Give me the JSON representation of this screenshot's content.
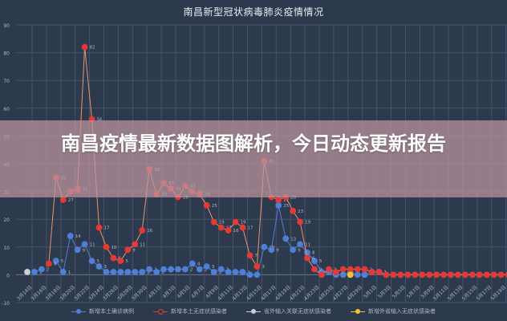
{
  "title": "南昌新型冠状病毒肺炎疫情情况",
  "banner": {
    "text": "南昌疫情最新数据图解析，今日动态更新报告"
  },
  "legend": [
    {
      "label": "新增本土确诊病例",
      "color": "#4f7fd6",
      "icon": "legend-line-dot"
    },
    {
      "label": "新增本土无症状感染者",
      "color": "#e53935",
      "icon": "legend-line-dot"
    },
    {
      "label": "省外输入关联无症状感染者",
      "color": "#c9ced6",
      "icon": "legend-line-dot"
    },
    {
      "label": "新增外省输入无症状感染者",
      "color": "#f4c430",
      "icon": "legend-line-dot"
    }
  ],
  "colors": {
    "background": "#2d3a4d",
    "grid": "#45536a",
    "axis_text": "#aeb6c4",
    "confirmed": "#4f7fd6",
    "asymptomatic": "#e53935",
    "asym_line": "#e8956a"
  },
  "chart_data": {
    "type": "line",
    "title": "南昌新型冠状病毒肺炎疫情情况",
    "xlabel": "",
    "ylabel": "",
    "ylim": [
      -10,
      90
    ],
    "yticks": [
      -10,
      0,
      10,
      20,
      30,
      40,
      50,
      60,
      70,
      80,
      90
    ],
    "grid": true,
    "legend_position": "bottom",
    "xtick_labels": [
      "3月14日",
      "3月16日",
      "3月18日",
      "3月20日",
      "3月22日",
      "3月24日",
      "3月26日",
      "3月28日",
      "3月30日",
      "4月1日",
      "4月3日",
      "4月5日",
      "4月7日",
      "4月9日",
      "4月11日",
      "4月13日",
      "4月15日",
      "4月17日",
      "4月19日",
      "4月21日",
      "4月23日",
      "4月25日",
      "4月27日",
      "4月29日",
      "5月1日",
      "5月3日",
      "5月5日",
      "5月7日",
      "5月9日",
      "5月11日",
      "5月13日",
      "5月15日",
      "5月17日",
      "5月19日"
    ],
    "x_start": "3月14日",
    "x_count": 68,
    "series": [
      {
        "name": "新增本土确诊病例",
        "start_index": 1,
        "values": [
          1,
          2,
          null,
          5,
          1,
          14,
          9,
          11,
          5,
          3,
          1,
          1,
          1,
          1,
          1,
          1,
          2,
          1,
          2,
          2,
          2,
          2,
          4,
          2,
          3,
          1,
          2,
          1,
          1,
          1,
          0,
          0,
          10,
          9,
          25,
          13,
          9,
          11,
          8,
          5,
          1,
          1,
          0,
          0,
          1,
          0,
          0,
          1,
          1,
          0,
          0,
          0,
          0,
          0,
          0,
          0,
          0,
          0,
          0,
          0,
          0,
          0,
          0,
          0,
          0,
          0,
          0
        ]
      },
      {
        "name": "新增本土无症状感染者",
        "start_index": 3,
        "values": [
          4,
          35,
          27,
          30,
          31,
          82,
          56,
          17,
          10,
          6,
          5,
          9,
          11,
          16,
          38,
          29,
          33,
          31,
          28,
          32,
          30,
          29,
          25,
          19,
          17,
          16,
          19,
          17,
          7,
          3,
          41,
          28,
          27,
          28,
          23,
          19,
          6,
          2,
          0,
          2,
          1,
          2,
          2,
          2,
          2,
          1,
          1,
          0,
          0,
          0,
          0,
          0,
          0,
          0,
          0,
          0,
          0,
          0,
          0,
          0,
          0,
          0,
          0,
          0,
          0
        ]
      },
      {
        "name": "省外输入关联无症状感染者",
        "start_index": 0,
        "values": [
          1
        ]
      },
      {
        "name": "新增外省输入无症状感染者",
        "start_index": 45,
        "values": [
          0
        ]
      }
    ]
  }
}
